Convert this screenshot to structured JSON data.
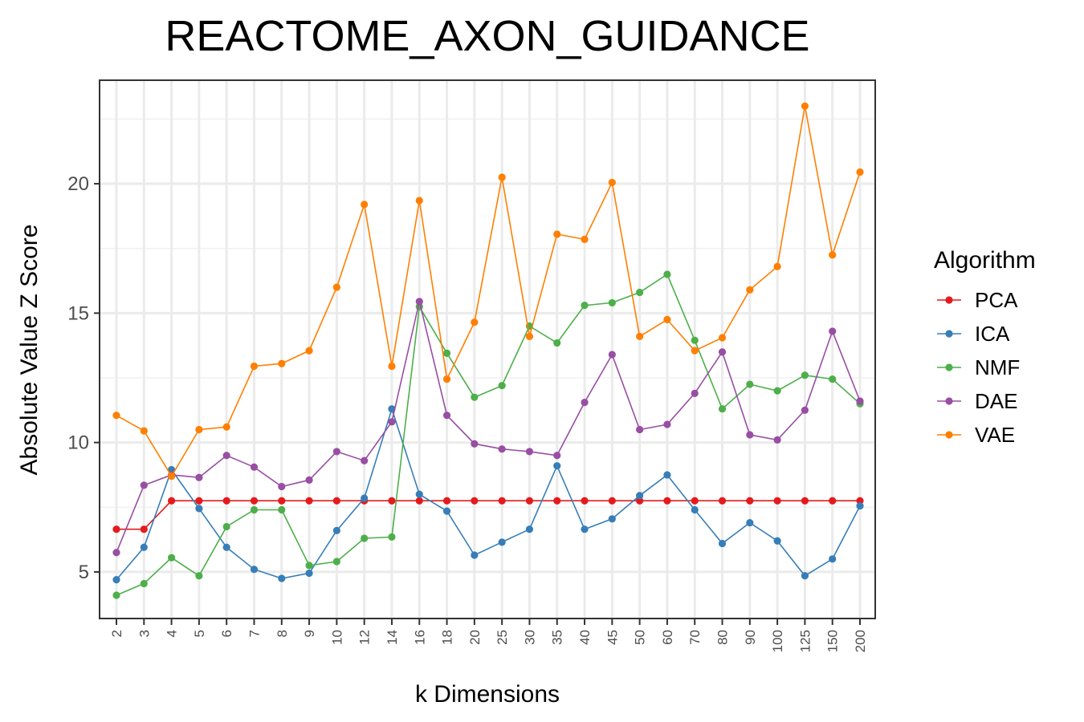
{
  "chart_data": {
    "type": "line",
    "title": "REACTOME_AXON_GUIDANCE",
    "xlabel": "k Dimensions",
    "ylabel": "Absolute Value Z Score",
    "categories": [
      "2",
      "3",
      "4",
      "5",
      "6",
      "7",
      "8",
      "9",
      "10",
      "12",
      "14",
      "16",
      "18",
      "20",
      "25",
      "30",
      "35",
      "40",
      "45",
      "50",
      "60",
      "70",
      "80",
      "90",
      "100",
      "125",
      "150",
      "200"
    ],
    "yticks": [
      5,
      10,
      15,
      20
    ],
    "ylim": [
      3.2,
      24.0
    ],
    "grid": true,
    "legend": {
      "title": "Algorithm",
      "position": "right"
    },
    "series": [
      {
        "name": "PCA",
        "color": "#e41a1c",
        "values": [
          6.65,
          6.65,
          7.75,
          7.75,
          7.75,
          7.75,
          7.75,
          7.75,
          7.75,
          7.75,
          7.75,
          7.75,
          7.75,
          7.75,
          7.75,
          7.75,
          7.75,
          7.75,
          7.75,
          7.75,
          7.75,
          7.75,
          7.75,
          7.75,
          7.75,
          7.75,
          7.75,
          7.75
        ]
      },
      {
        "name": "ICA",
        "color": "#377eb8",
        "values": [
          4.7,
          5.95,
          8.95,
          7.45,
          5.95,
          5.1,
          4.75,
          4.95,
          6.6,
          7.85,
          11.3,
          8.0,
          7.35,
          5.65,
          6.15,
          6.65,
          9.1,
          6.65,
          7.05,
          7.95,
          8.75,
          7.4,
          6.1,
          6.9,
          6.2,
          4.85,
          5.5,
          7.55
        ]
      },
      {
        "name": "NMF",
        "color": "#4daf4a",
        "values": [
          4.1,
          4.55,
          5.55,
          4.85,
          6.75,
          7.4,
          7.4,
          5.25,
          5.4,
          6.3,
          6.35,
          15.25,
          13.45,
          11.75,
          12.2,
          14.5,
          13.85,
          15.3,
          15.4,
          15.8,
          16.5,
          13.95,
          11.3,
          12.25,
          12.0,
          12.6,
          12.45,
          11.5
        ]
      },
      {
        "name": "DAE",
        "color": "#984ea3",
        "values": [
          5.75,
          8.35,
          8.75,
          8.65,
          9.5,
          9.05,
          8.3,
          8.55,
          9.65,
          9.3,
          10.8,
          15.45,
          11.05,
          9.95,
          9.75,
          9.65,
          9.5,
          11.55,
          13.4,
          10.5,
          10.7,
          11.9,
          13.5,
          10.3,
          10.1,
          11.25,
          14.3,
          11.6
        ]
      },
      {
        "name": "VAE",
        "color": "#ff7f00",
        "values": [
          11.05,
          10.45,
          8.7,
          10.5,
          10.6,
          12.95,
          13.05,
          13.55,
          16.0,
          19.2,
          12.95,
          19.35,
          12.45,
          14.65,
          20.25,
          14.1,
          18.05,
          17.85,
          20.05,
          14.1,
          14.75,
          13.55,
          14.05,
          15.9,
          16.8,
          23.0,
          17.25,
          20.45
        ]
      }
    ]
  }
}
